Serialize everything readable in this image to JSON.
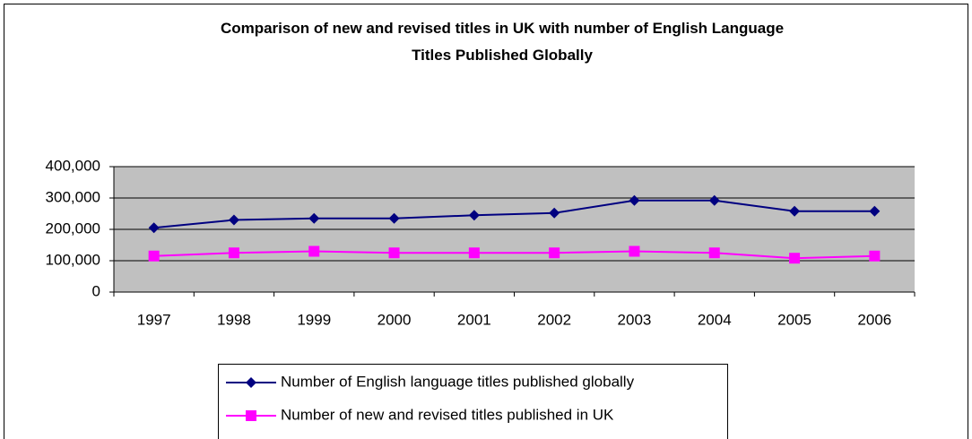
{
  "chart_data": {
    "type": "line",
    "title": "Comparison of new and revised titles in UK with number of English Language Titles Published Globally",
    "categories": [
      "1997",
      "1998",
      "1999",
      "2000",
      "2001",
      "2002",
      "2003",
      "2004",
      "2005",
      "2006"
    ],
    "series": [
      {
        "name": "Number of English language titles published globally",
        "color": "#000080",
        "marker": "diamond",
        "values": [
          205000,
          230000,
          235000,
          235000,
          245000,
          252000,
          292000,
          292000,
          258000,
          258000
        ]
      },
      {
        "name": "Number of new and revised titles published in UK",
        "color": "#ff00ff",
        "marker": "square",
        "values": [
          115000,
          125000,
          130000,
          125000,
          125000,
          125000,
          130000,
          125000,
          108000,
          115000
        ]
      }
    ],
    "ylim": [
      0,
      400000
    ],
    "yticks": [
      0,
      {
        "value": 100000,
        "label": "100,000"
      },
      {
        "value": 200000,
        "label": "200,000"
      },
      {
        "value": 300000,
        "label": "300,000"
      },
      {
        "value": 400000,
        "label": "400,000"
      }
    ],
    "grid": true,
    "legend": "bottom"
  }
}
